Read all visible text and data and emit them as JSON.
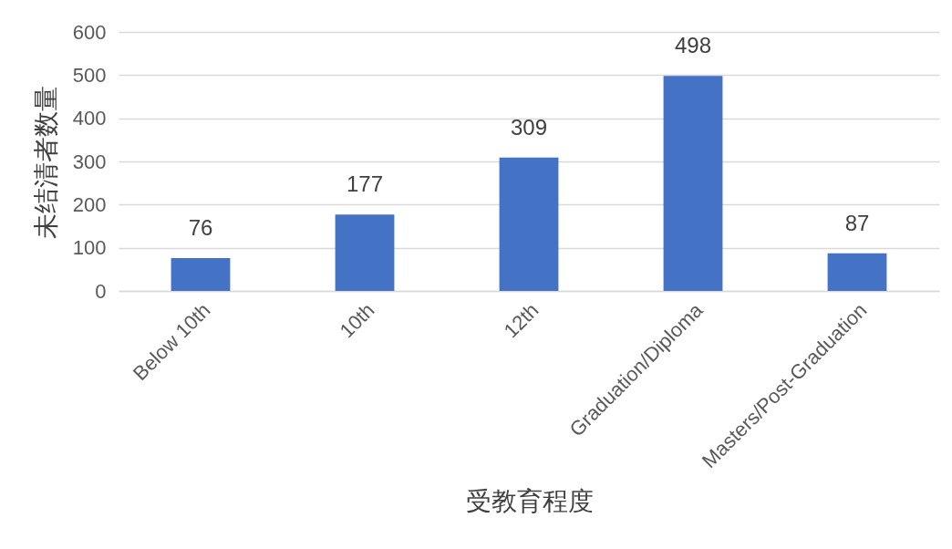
{
  "chart_data": {
    "type": "bar",
    "xlabel": "受教育程度",
    "ylabel": "未结清者数量",
    "categories": [
      "Below 10th",
      "10th",
      "12th",
      "Graduation/Diploma",
      "Masters/Post-Graduation"
    ],
    "values": [
      76,
      177,
      309,
      498,
      87
    ],
    "color": "#4472c4",
    "ylim": [
      0,
      600
    ],
    "yticks": [
      0,
      100,
      200,
      300,
      400,
      500,
      600
    ],
    "grid": "y",
    "data_labels": true
  }
}
